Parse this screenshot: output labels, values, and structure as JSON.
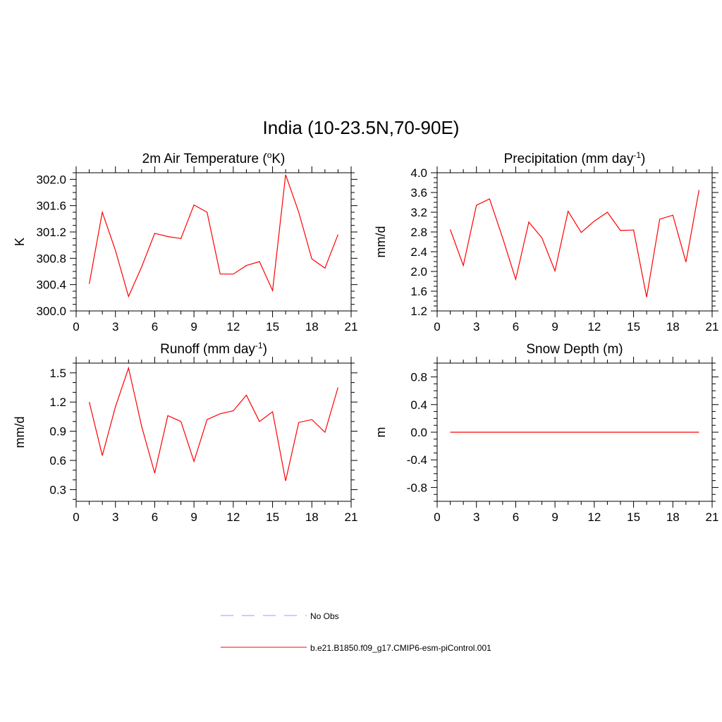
{
  "figure": {
    "title": "India (10-23.5N,70-90E)"
  },
  "legend": {
    "entries": [
      {
        "label": "No Obs",
        "color": "#9999ff",
        "dash": true
      },
      {
        "label": "b.e21.B1850.f09_g17.CMIP6-esm-piControl.001",
        "color": "#ff0000",
        "dash": false
      }
    ]
  },
  "chart_data": [
    {
      "id": "temp",
      "type": "line",
      "title": "2m Air Temperature (",
      "title_sup": "o",
      "title_end": "K)",
      "ylabel": "K",
      "xlim": [
        0,
        21
      ],
      "ylim": [
        300.0,
        302.1
      ],
      "xticks": [
        0,
        3,
        6,
        9,
        12,
        15,
        18,
        21
      ],
      "xtick_labels": [
        "0",
        "3",
        "6",
        "9",
        "12",
        "15",
        "18",
        "21"
      ],
      "yticks": [
        300.0,
        300.4,
        300.8,
        301.2,
        301.6,
        302.0
      ],
      "ytick_labels": [
        "300.0",
        "300.4",
        "300.8",
        "301.2",
        "301.6",
        "302.0"
      ],
      "yminor": 0.1,
      "color": "#ff0000",
      "x": [
        1,
        2,
        3,
        4,
        5,
        6,
        7,
        8,
        9,
        10,
        11,
        12,
        13,
        14,
        15,
        16,
        17,
        18,
        19,
        20
      ],
      "values": [
        300.41,
        301.5,
        300.92,
        300.22,
        300.67,
        301.18,
        301.13,
        301.1,
        301.61,
        301.5,
        300.56,
        300.56,
        300.69,
        300.75,
        300.31,
        302.07,
        301.5,
        300.79,
        300.65,
        301.16
      ]
    },
    {
      "id": "precip",
      "type": "line",
      "title": "Precipitation (mm day",
      "title_sup": "-1",
      "title_end": ")",
      "ylabel": "mm/d",
      "xlim": [
        0,
        21
      ],
      "ylim": [
        1.2,
        4.0
      ],
      "xticks": [
        0,
        3,
        6,
        9,
        12,
        15,
        18,
        21
      ],
      "xtick_labels": [
        "0",
        "3",
        "6",
        "9",
        "12",
        "15",
        "18",
        "21"
      ],
      "yticks": [
        1.2,
        1.6,
        2.0,
        2.4,
        2.8,
        3.2,
        3.6,
        4.0
      ],
      "ytick_labels": [
        "1.2",
        "1.6",
        "2.0",
        "2.4",
        "2.8",
        "3.2",
        "3.6",
        "4.0"
      ],
      "yminor": 0.1,
      "color": "#ff0000",
      "x": [
        1,
        2,
        3,
        4,
        5,
        6,
        7,
        8,
        9,
        10,
        11,
        12,
        13,
        14,
        15,
        16,
        17,
        18,
        19,
        20
      ],
      "values": [
        2.85,
        2.12,
        3.34,
        3.47,
        2.68,
        1.84,
        3.0,
        2.68,
        2.01,
        3.22,
        2.79,
        3.02,
        3.2,
        2.83,
        2.84,
        1.48,
        3.06,
        3.14,
        2.19,
        3.65
      ]
    },
    {
      "id": "runoff",
      "type": "line",
      "title": "Runoff (mm day",
      "title_sup": "-1",
      "title_end": ")",
      "ylabel": "mm/d",
      "xlim": [
        0,
        21
      ],
      "ylim": [
        0.18,
        1.6
      ],
      "xticks": [
        0,
        3,
        6,
        9,
        12,
        15,
        18,
        21
      ],
      "xtick_labels": [
        "0",
        "3",
        "6",
        "9",
        "12",
        "15",
        "18",
        "21"
      ],
      "yticks": [
        0.3,
        0.6,
        0.9,
        1.2,
        1.5
      ],
      "ytick_labels": [
        "0.3",
        "0.6",
        "0.9",
        "1.2",
        "1.5"
      ],
      "yminor": 0.1,
      "color": "#ff0000",
      "x": [
        1,
        2,
        3,
        4,
        5,
        6,
        7,
        8,
        9,
        10,
        11,
        12,
        13,
        14,
        15,
        16,
        17,
        18,
        19,
        20
      ],
      "values": [
        1.2,
        0.65,
        1.15,
        1.55,
        0.95,
        0.47,
        1.06,
        1.0,
        0.59,
        1.02,
        1.08,
        1.11,
        1.27,
        1.0,
        1.1,
        0.39,
        0.99,
        1.02,
        0.89,
        1.35
      ]
    },
    {
      "id": "snow",
      "type": "line",
      "title": "Snow Depth (m)",
      "title_sup": "",
      "title_end": "",
      "ylabel": "m",
      "xlim": [
        0,
        21
      ],
      "ylim": [
        -1.0,
        1.0
      ],
      "xticks": [
        0,
        3,
        6,
        9,
        12,
        15,
        18,
        21
      ],
      "xtick_labels": [
        "0",
        "3",
        "6",
        "9",
        "12",
        "15",
        "18",
        "21"
      ],
      "yticks": [
        -0.8,
        -0.4,
        0.0,
        0.4,
        0.8
      ],
      "ytick_labels": [
        "-0.8",
        "-0.4",
        "0.0",
        "0.4",
        "0.8"
      ],
      "yminor": 0.1,
      "color": "#ff0000",
      "x": [
        1,
        2,
        3,
        4,
        5,
        6,
        7,
        8,
        9,
        10,
        11,
        12,
        13,
        14,
        15,
        16,
        17,
        18,
        19,
        20
      ],
      "values": [
        0,
        0,
        0,
        0,
        0,
        0,
        0,
        0,
        0,
        0,
        0,
        0,
        0,
        0,
        0,
        0,
        0,
        0,
        0,
        0
      ]
    }
  ]
}
